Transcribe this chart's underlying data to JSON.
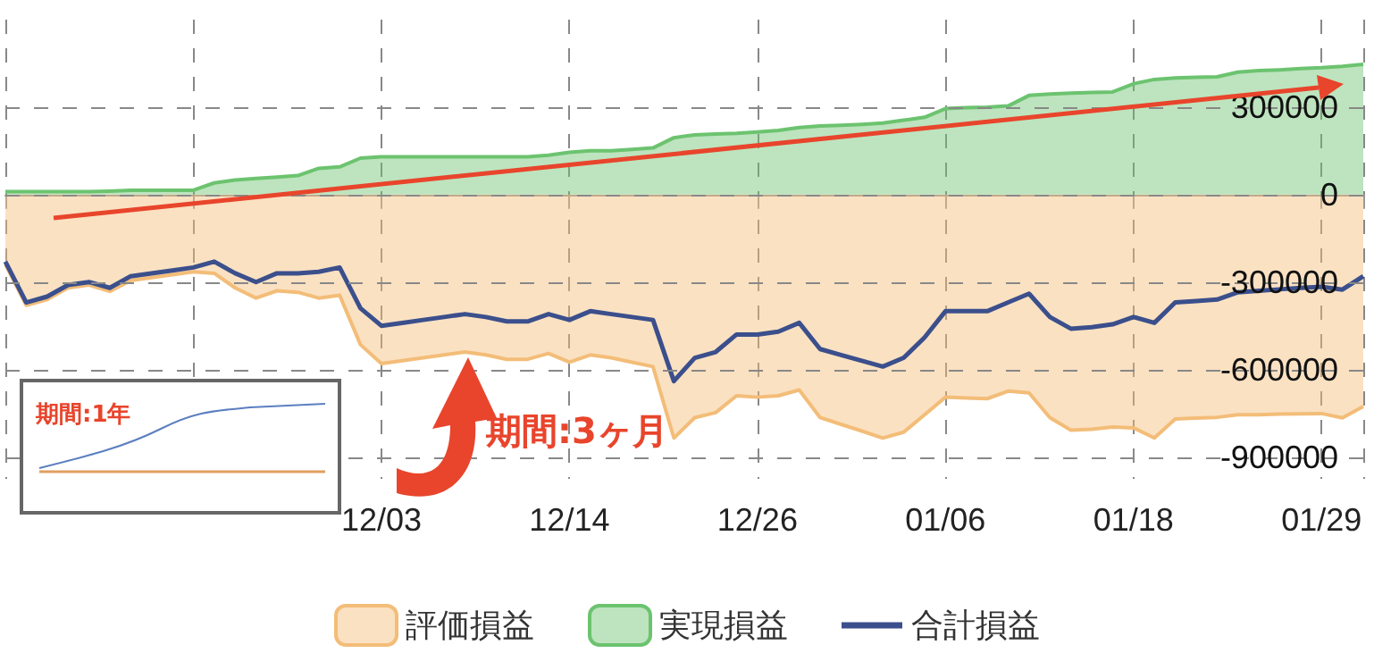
{
  "chart_data": {
    "type": "area",
    "categories": [
      null,
      null,
      null,
      null,
      null,
      null,
      null,
      null,
      null,
      null,
      null,
      null,
      null,
      null,
      null,
      null,
      null,
      null,
      "12/03",
      null,
      null,
      null,
      null,
      null,
      null,
      null,
      null,
      "12/14",
      null,
      null,
      null,
      null,
      null,
      null,
      null,
      null,
      "12/26",
      null,
      null,
      null,
      null,
      null,
      null,
      null,
      null,
      "01/06",
      null,
      null,
      null,
      null,
      null,
      null,
      null,
      null,
      "01/18",
      null,
      null,
      null,
      null,
      null,
      null,
      null,
      null,
      "01/29",
      null,
      null
    ],
    "series": [
      {
        "name": "評価損益",
        "type": "area",
        "color": "#f3bd78",
        "values": [
          -240000,
          -380000,
          -360000,
          -320000,
          -310000,
          -332000,
          -295000,
          -285000,
          -275000,
          -265000,
          -270000,
          -320000,
          -355000,
          -330000,
          -335000,
          -355000,
          -345000,
          -515000,
          -580000,
          -570000,
          -560000,
          -550000,
          -540000,
          -550000,
          -565000,
          -565000,
          -545000,
          -575000,
          -550000,
          -560000,
          -575000,
          -590000,
          -835000,
          -765000,
          -748000,
          -690000,
          -695000,
          -690000,
          -670000,
          -765000,
          -788000,
          -811000,
          -835000,
          -815000,
          -755000,
          -695000,
          -698000,
          -700000,
          -674000,
          -680000,
          -765000,
          -808000,
          -805000,
          -797000,
          -800000,
          -835000,
          -770000,
          -767000,
          -764000,
          -755000,
          -755000,
          -753000,
          -752000,
          -751000,
          -766000,
          -727000
        ]
      },
      {
        "name": "実現損益",
        "type": "area",
        "color": "#6cc36f",
        "values": [
          10000,
          10000,
          10000,
          10000,
          10000,
          12000,
          15000,
          15000,
          15000,
          15000,
          40000,
          50000,
          55000,
          60000,
          65000,
          90000,
          95000,
          125000,
          130000,
          130000,
          130000,
          130000,
          130000,
          130000,
          130000,
          130000,
          135000,
          145000,
          150000,
          150000,
          155000,
          160000,
          195000,
          205000,
          208000,
          210000,
          215000,
          220000,
          230000,
          235000,
          238000,
          241000,
          245000,
          255000,
          265000,
          295000,
          298000,
          300000,
          304000,
          340000,
          345000,
          348000,
          350000,
          352000,
          380000,
          395000,
          400000,
          402000,
          404000,
          420000,
          425000,
          428000,
          432000,
          435000,
          440000,
          447000
        ]
      },
      {
        "name": "合計損益",
        "type": "line",
        "color": "#3b4f8c",
        "values": [
          -230000,
          -370000,
          -350000,
          -310000,
          -300000,
          -320000,
          -280000,
          -270000,
          -260000,
          -250000,
          -230000,
          -270000,
          -300000,
          -270000,
          -270000,
          -265000,
          -250000,
          -390000,
          -450000,
          -440000,
          -430000,
          -420000,
          -410000,
          -420000,
          -435000,
          -435000,
          -410000,
          -430000,
          -400000,
          -410000,
          -420000,
          -430000,
          -640000,
          -560000,
          -540000,
          -480000,
          -480000,
          -470000,
          -440000,
          -530000,
          -550000,
          -570000,
          -590000,
          -560000,
          -490000,
          -400000,
          -400000,
          -400000,
          -370000,
          -340000,
          -420000,
          -460000,
          -455000,
          -445000,
          -420000,
          -440000,
          -370000,
          -365000,
          -360000,
          -335000,
          -330000,
          -325000,
          -320000,
          -316000,
          -326000,
          -280000
        ]
      }
    ],
    "ylim": [
      -975000,
      600000
    ],
    "yticks": [
      -900000,
      -600000,
      -300000,
      0,
      300000
    ],
    "grid": true,
    "legend": "bottom",
    "marker": "none",
    "annotations": [
      "期間:3ヶ月",
      "期間:1年"
    ]
  }
}
